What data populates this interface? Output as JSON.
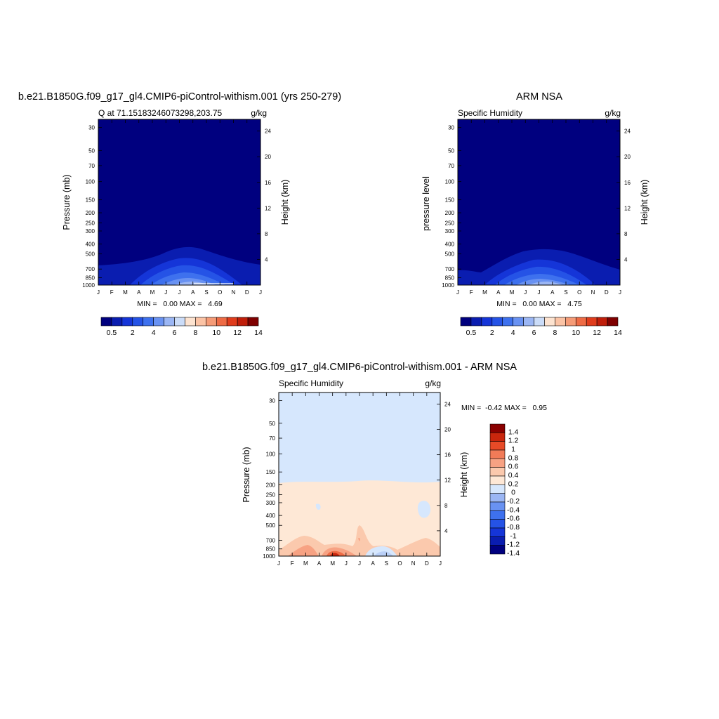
{
  "colors": {
    "blue_red_ramp": [
      "#00007f",
      "#0a1db0",
      "#1535d8",
      "#2553e6",
      "#3e71ee",
      "#6992f2",
      "#9bb6f4",
      "#cbdcf8",
      "#fde3d0",
      "#fbc3a5",
      "#f59b77",
      "#ee6b45",
      "#e03c1c",
      "#c01e0a",
      "#7f0000"
    ],
    "diff_ramp": [
      "#00007f",
      "#0a1db0",
      "#1535d8",
      "#2553e6",
      "#3e71ee",
      "#6992f2",
      "#9bb6f4",
      "#d6e7fd",
      "#fee8d6",
      "#fbc9ad",
      "#f7a283",
      "#f17b58",
      "#e74a27",
      "#c9260d",
      "#8a0000"
    ]
  },
  "chart_data": [
    {
      "type": "heatmap",
      "title": "b.e21.B1850G.f09_g17_gl4.CMIP6-piControl-withism.001 (yrs 250-279)",
      "left_string": "Q at 71.15183246073298,203.75",
      "right_string": "g/kg",
      "ylabel": "Pressure (mb)",
      "right_ylabel": "Height (km)",
      "x_ticks": [
        "J",
        "F",
        "M",
        "A",
        "M",
        "J",
        "J",
        "A",
        "S",
        "O",
        "N",
        "D",
        "J"
      ],
      "y_ticks": [
        "30",
        "50",
        "70",
        "100",
        "150",
        "200",
        "250",
        "300",
        "400",
        "500",
        "700",
        "850",
        "1000"
      ],
      "right_y_ticks": [
        "24",
        "20",
        "16",
        "12",
        "8",
        "4"
      ],
      "stats": "MIN =   0.00 MAX =   4.69",
      "min": 0.0,
      "max": 4.69,
      "colorbar_labels": [
        "0.5",
        "2",
        "4",
        "6",
        "8",
        "10",
        "12",
        "14"
      ]
    },
    {
      "type": "heatmap",
      "title": "ARM NSA",
      "left_string": "Specific Humidity",
      "right_string": "g/kg",
      "ylabel": "pressure level",
      "right_ylabel": "Height (km)",
      "x_ticks": [
        "J",
        "F",
        "M",
        "A",
        "M",
        "J",
        "J",
        "A",
        "S",
        "O",
        "N",
        "D",
        "J"
      ],
      "y_ticks": [
        "30",
        "50",
        "70",
        "100",
        "150",
        "200",
        "250",
        "300",
        "400",
        "500",
        "700",
        "850",
        "1000"
      ],
      "right_y_ticks": [
        "24",
        "20",
        "16",
        "12",
        "8",
        "4"
      ],
      "stats": "MIN =   0.00 MAX =   4.75",
      "min": 0.0,
      "max": 4.75,
      "colorbar_labels": [
        "0.5",
        "2",
        "4",
        "6",
        "8",
        "10",
        "12",
        "14"
      ]
    },
    {
      "type": "heatmap",
      "title": "b.e21.B1850G.f09_g17_gl4.CMIP6-piControl-withism.001 - ARM NSA",
      "left_string": "Specific Humidity",
      "right_string": "g/kg",
      "ylabel": "Pressure (mb)",
      "right_ylabel": "Height (km)",
      "x_ticks": [
        "J",
        "F",
        "M",
        "A",
        "M",
        "J",
        "J",
        "A",
        "S",
        "O",
        "N",
        "D",
        "J"
      ],
      "y_ticks": [
        "30",
        "50",
        "70",
        "100",
        "150",
        "200",
        "250",
        "300",
        "400",
        "500",
        "700",
        "850",
        "1000"
      ],
      "right_y_ticks": [
        "24",
        "20",
        "16",
        "12",
        "8",
        "4"
      ],
      "stats": "MIN =  -0.42 MAX =   0.95",
      "min": -0.42,
      "max": 0.95,
      "colorbar_labels": [
        "1.4",
        "1.2",
        "1",
        "0.8",
        "0.6",
        "0.4",
        "0.2",
        "0",
        "-0.2",
        "-0.4",
        "-0.6",
        "-0.8",
        "-1",
        "-1.2",
        "-1.4"
      ]
    }
  ]
}
